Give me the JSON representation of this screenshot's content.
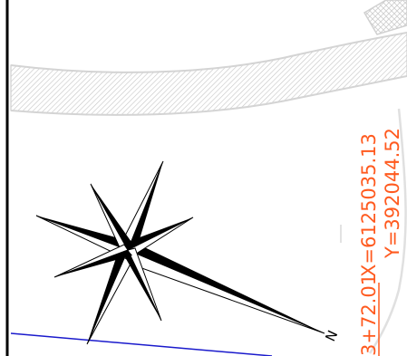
{
  "drawing": {
    "station_label": "3+72.01",
    "x_coord_label": "X=6125035.13",
    "y_coord_label": "Y=392044.52",
    "north_letter": "N"
  },
  "colors": {
    "annotation": "#ff5a1f",
    "alignment_line": "#1a1acc",
    "hatch": "#c8c8c8",
    "linework": "#000000"
  },
  "icons": {
    "north_arrow": "compass-rose-icon"
  }
}
